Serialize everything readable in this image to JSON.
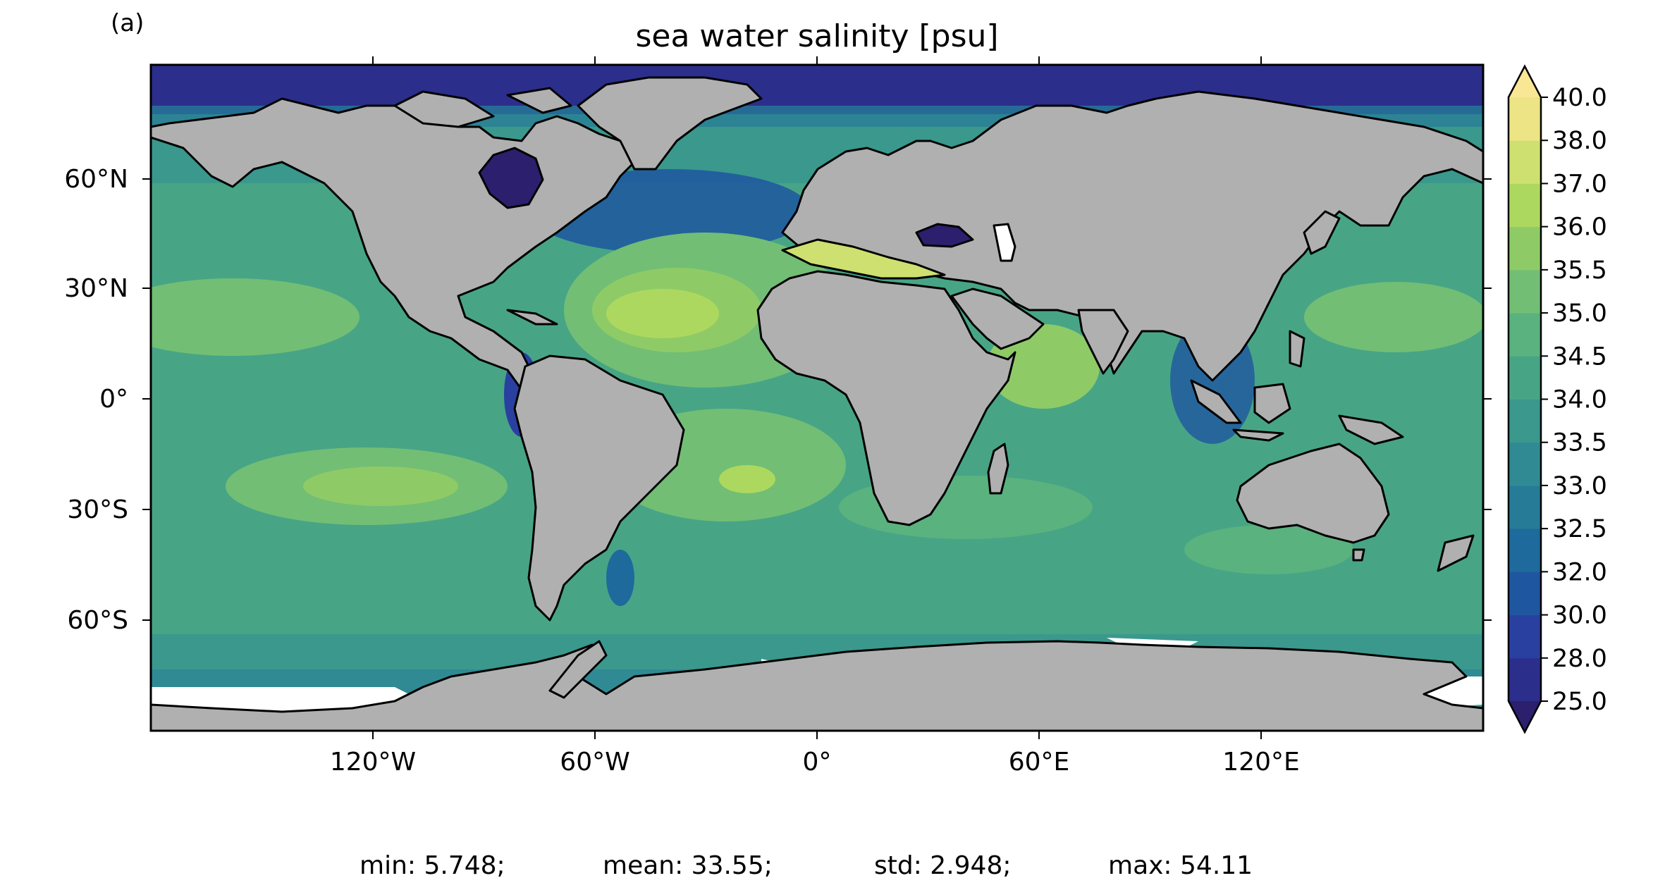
{
  "panel_label": "(a)",
  "title": "sea water salinity [psu]",
  "lat_ticks": [
    "60°N",
    "30°N",
    "0°",
    "30°S",
    "60°S"
  ],
  "lon_ticks": [
    "120°W",
    "60°W",
    "0°",
    "60°E",
    "120°E"
  ],
  "colorbar": {
    "levels": [
      25.0,
      28.0,
      30.0,
      32.0,
      32.5,
      33.0,
      33.5,
      34.0,
      34.5,
      35.0,
      35.5,
      36.0,
      37.0,
      38.0,
      40.0
    ],
    "labels": [
      "25.0",
      "28.0",
      "30.0",
      "32.0",
      "32.5",
      "33.0",
      "33.5",
      "34.0",
      "34.5",
      "35.0",
      "35.5",
      "36.0",
      "37.0",
      "38.0",
      "40.0"
    ],
    "colors": [
      "#2b1f6e",
      "#2c2e8c",
      "#2a40a0",
      "#1f56a0",
      "#1e6a9c",
      "#267b97",
      "#2f8a93",
      "#3a988d",
      "#47a586",
      "#5ab27f",
      "#72be74",
      "#8ecb67",
      "#add85f",
      "#cde070",
      "#ece485",
      "#f9e795"
    ],
    "extend": "both"
  },
  "stats": {
    "min": "min: 5.748;",
    "mean": "mean: 33.55;",
    "std": "std: 2.948;",
    "max": "max: 54.11"
  },
  "map_colors": {
    "land": "#b0b0b0",
    "ice_gap": "#ffffff",
    "coast": "#000000"
  }
}
